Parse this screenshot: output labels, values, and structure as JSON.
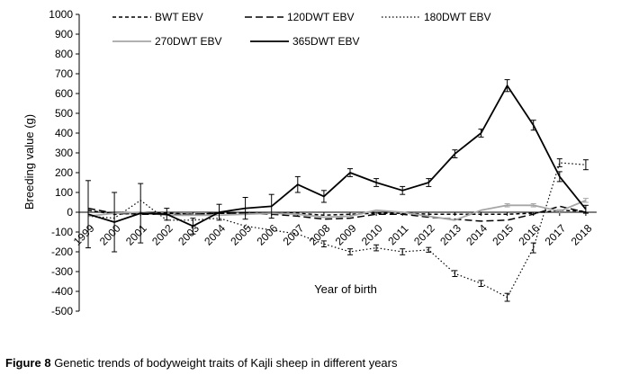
{
  "caption": {
    "label": "Figure 8",
    "text": " Genetic trends of bodyweight traits of Kajli sheep in different years"
  },
  "chart_data": {
    "type": "line",
    "title": "",
    "xlabel": "Year of birth",
    "ylabel": "Breeding value (g)",
    "ylim": [
      -500,
      1000
    ],
    "yticks": [
      -500,
      -400,
      -300,
      -200,
      -100,
      0,
      100,
      200,
      300,
      400,
      500,
      600,
      700,
      800,
      900,
      1000
    ],
    "categories": [
      "1999",
      "2000",
      "2001",
      "2002",
      "2003",
      "2004",
      "2005",
      "2006",
      "2007",
      "2008",
      "2009",
      "2010",
      "2011",
      "2012",
      "2013",
      "2014",
      "2015",
      "2016",
      "2017",
      "2018"
    ],
    "grid": false,
    "legend_position": "top",
    "series": [
      {
        "name": "BWT EBV",
        "color": "#000000",
        "dash": "short-dash",
        "values": [
          10,
          -10,
          -5,
          -5,
          -10,
          -5,
          -5,
          -5,
          -5,
          -15,
          -10,
          -5,
          -5,
          -10,
          -10,
          -10,
          -10,
          -5,
          10,
          5
        ],
        "errors": [
          0,
          0,
          0,
          0,
          0,
          0,
          0,
          0,
          0,
          0,
          0,
          0,
          0,
          0,
          0,
          0,
          0,
          0,
          0,
          0
        ]
      },
      {
        "name": "120DWT EBV",
        "color": "#000000",
        "dash": "long-dash",
        "values": [
          20,
          -5,
          -10,
          -10,
          -10,
          -5,
          -5,
          -10,
          -20,
          -35,
          -30,
          -10,
          -10,
          -25,
          -35,
          -45,
          -40,
          -10,
          30,
          0
        ],
        "errors": [
          0,
          0,
          0,
          0,
          0,
          0,
          0,
          0,
          0,
          0,
          0,
          0,
          0,
          0,
          0,
          0,
          0,
          0,
          0,
          0
        ]
      },
      {
        "name": "180DWT EBV",
        "color": "#000000",
        "dash": "dotted",
        "values": [
          -20,
          -30,
          60,
          -40,
          -40,
          -30,
          -70,
          -90,
          -110,
          -160,
          -200,
          -180,
          -200,
          -190,
          -310,
          -360,
          -430,
          -180,
          250,
          240
        ],
        "errors": [
          0,
          0,
          0,
          0,
          0,
          0,
          0,
          0,
          0,
          15,
          15,
          15,
          15,
          12,
          15,
          15,
          20,
          25,
          20,
          25
        ]
      },
      {
        "name": "270DWT EBV",
        "color": "#a6a6a6",
        "dash": "solid",
        "values": [
          -20,
          -5,
          0,
          -15,
          -15,
          -15,
          -10,
          -5,
          -10,
          -25,
          -20,
          10,
          0,
          -20,
          -40,
          10,
          35,
          35,
          5,
          60
        ],
        "errors": [
          0,
          0,
          0,
          0,
          0,
          0,
          0,
          0,
          0,
          0,
          0,
          0,
          0,
          0,
          0,
          0,
          8,
          8,
          8,
          10
        ]
      },
      {
        "name": "365DWT EBV",
        "color": "#000000",
        "dash": "solid",
        "values": [
          -10,
          -50,
          -5,
          -10,
          -70,
          0,
          20,
          30,
          140,
          80,
          200,
          150,
          110,
          150,
          295,
          400,
          640,
          440,
          180,
          15
        ],
        "errors": [
          170,
          150,
          150,
          30,
          40,
          40,
          55,
          60,
          40,
          30,
          20,
          20,
          20,
          20,
          20,
          20,
          30,
          25,
          25,
          20
        ]
      }
    ]
  }
}
